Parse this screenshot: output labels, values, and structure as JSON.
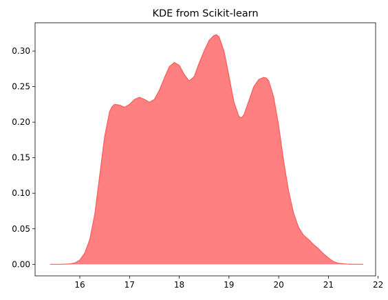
{
  "chart_data": {
    "type": "area",
    "title": "KDE from Scikit-learn",
    "xlabel": "",
    "ylabel": "",
    "xlim": [
      15.1,
      21.95
    ],
    "ylim": [
      -0.0162,
      0.3398
    ],
    "x_ticks": [
      16,
      17,
      18,
      19,
      20,
      21,
      22
    ],
    "y_ticks": [
      0.0,
      0.05,
      0.1,
      0.15,
      0.2,
      0.25,
      0.3
    ],
    "x_tick_labels": [
      "16",
      "17",
      "18",
      "19",
      "20",
      "21",
      "22"
    ],
    "y_tick_labels": [
      "0.00",
      "0.05",
      "0.10",
      "0.15",
      "0.20",
      "0.25",
      "0.30"
    ],
    "grid": false,
    "fill_color": "#ff8080",
    "line_color": "#ff5a5a",
    "series": [
      {
        "x": [
          15.4,
          15.6,
          15.8,
          15.9,
          16.0,
          16.1,
          16.2,
          16.3,
          16.4,
          16.5,
          16.6,
          16.65,
          16.7,
          16.8,
          16.9,
          17.0,
          17.1,
          17.2,
          17.3,
          17.4,
          17.5,
          17.6,
          17.7,
          17.8,
          17.9,
          18.0,
          18.1,
          18.2,
          18.3,
          18.4,
          18.5,
          18.6,
          18.7,
          18.75,
          18.8,
          18.9,
          19.0,
          19.1,
          19.2,
          19.25,
          19.3,
          19.4,
          19.5,
          19.6,
          19.7,
          19.75,
          19.8,
          19.9,
          20.0,
          20.1,
          20.2,
          20.3,
          20.4,
          20.5,
          20.6,
          20.7,
          20.8,
          20.9,
          21.0,
          21.1,
          21.2,
          21.4,
          21.7
        ],
        "y": [
          0.0,
          0.0,
          0.0005,
          0.002,
          0.006,
          0.016,
          0.035,
          0.07,
          0.125,
          0.18,
          0.215,
          0.222,
          0.225,
          0.224,
          0.221,
          0.225,
          0.232,
          0.235,
          0.232,
          0.228,
          0.232,
          0.245,
          0.262,
          0.278,
          0.284,
          0.28,
          0.267,
          0.258,
          0.264,
          0.283,
          0.3,
          0.315,
          0.322,
          0.323,
          0.32,
          0.3,
          0.265,
          0.228,
          0.208,
          0.206,
          0.21,
          0.23,
          0.25,
          0.26,
          0.263,
          0.262,
          0.258,
          0.235,
          0.195,
          0.145,
          0.103,
          0.072,
          0.052,
          0.041,
          0.035,
          0.028,
          0.022,
          0.015,
          0.009,
          0.004,
          0.0015,
          0.0002,
          0.0
        ]
      }
    ]
  }
}
